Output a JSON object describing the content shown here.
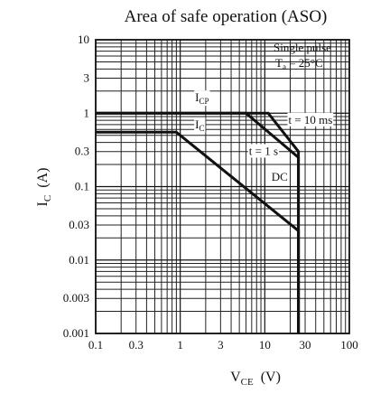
{
  "chart_data": {
    "type": "line",
    "title": "Area of safe operation (ASO)",
    "xlabel_main": "V",
    "xlabel_sub": "CE",
    "xlabel_unit": "(V)",
    "ylabel_main": "I",
    "ylabel_sub": "C",
    "ylabel_unit": "(A)",
    "x_scale": "log",
    "y_scale": "log",
    "xlim": [
      0.1,
      100
    ],
    "ylim": [
      0.001,
      10
    ],
    "x_ticks": [
      {
        "value": 0.1,
        "label": "0.1"
      },
      {
        "value": 0.3,
        "label": "0.3"
      },
      {
        "value": 1,
        "label": "1"
      },
      {
        "value": 3,
        "label": "3"
      },
      {
        "value": 10,
        "label": "10"
      },
      {
        "value": 30,
        "label": "30"
      },
      {
        "value": 100,
        "label": "100"
      }
    ],
    "y_ticks": [
      {
        "value": 0.001,
        "label": "0.001"
      },
      {
        "value": 0.003,
        "label": "0.003"
      },
      {
        "value": 0.01,
        "label": "0.01"
      },
      {
        "value": 0.03,
        "label": "0.03"
      },
      {
        "value": 0.1,
        "label": "0.1"
      },
      {
        "value": 0.3,
        "label": "0.3"
      },
      {
        "value": 1,
        "label": "1"
      },
      {
        "value": 3,
        "label": "3"
      },
      {
        "value": 10,
        "label": "10"
      }
    ],
    "grid": true,
    "note_line1": "Single pulse",
    "note_line2_main": "T",
    "note_line2_sub": "a",
    "note_line2_rest": " = 25°C",
    "series": [
      {
        "points": [
          [
            0.1,
            1.0
          ],
          [
            11.0,
            1.0
          ],
          [
            25.0,
            0.3
          ],
          [
            25.0,
            0.001
          ]
        ]
      },
      {
        "points": [
          [
            0.1,
            1.0
          ],
          [
            6.0,
            1.0
          ],
          [
            25.0,
            0.25
          ],
          [
            25.0,
            0.001
          ]
        ]
      },
      {
        "points": [
          [
            0.1,
            0.55
          ],
          [
            0.9,
            0.55
          ],
          [
            25.0,
            0.025
          ],
          [
            25.0,
            0.001
          ]
        ]
      }
    ],
    "labels": [
      {
        "main": "I",
        "sub": "CP",
        "x": 1.5,
        "y": 1.45
      },
      {
        "main": "I",
        "sub": "C",
        "x": 1.5,
        "y": 0.62
      },
      {
        "text": "t = 10 ms",
        "x": 19,
        "y": 0.72
      },
      {
        "text": "t = 1 s",
        "x": 6.5,
        "y": 0.27
      },
      {
        "text": "DC",
        "x": 12,
        "y": 0.12
      }
    ]
  }
}
